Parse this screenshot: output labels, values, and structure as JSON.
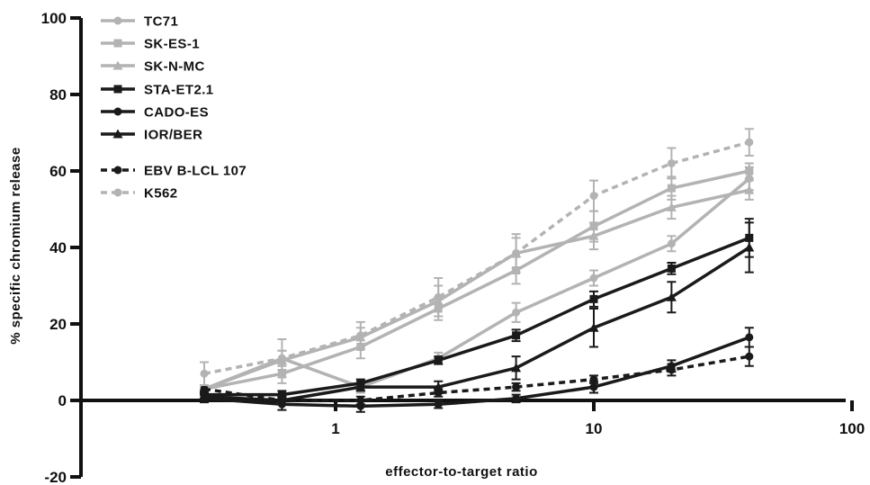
{
  "chart_data": {
    "type": "line",
    "xlabel": "effector-to-target ratio",
    "ylabel": "% specific chromium release",
    "xscale": "log",
    "xlim": [
      0.1,
      100
    ],
    "ylim": [
      -20,
      100
    ],
    "x_ticks": [
      1,
      10,
      100
    ],
    "x_tick_labels": [
      "1",
      "10",
      "100"
    ],
    "y_ticks": [
      -20,
      0,
      20,
      40,
      60,
      80,
      100
    ],
    "y_tick_labels": [
      "-20",
      "0",
      "20",
      "40",
      "60",
      "80",
      "100"
    ],
    "x": [
      0.31,
      0.62,
      1.25,
      2.5,
      5,
      10,
      20,
      40
    ],
    "legend_position": "top-left",
    "grid": false,
    "series": [
      {
        "name": "TC71",
        "color": "#b3b3b3",
        "marker": "circle",
        "dash": false,
        "values": [
          3,
          11,
          3.5,
          11,
          23,
          32,
          41,
          58
        ],
        "errors": [
          1,
          2,
          1.5,
          1.5,
          2.5,
          2,
          2,
          3
        ]
      },
      {
        "name": "SK-ES-1",
        "color": "#b3b3b3",
        "marker": "square",
        "dash": false,
        "values": [
          3,
          7,
          14,
          24,
          34,
          45.5,
          55.5,
          60
        ],
        "errors": [
          1,
          2.5,
          3,
          3,
          3.5,
          4,
          3,
          2
        ]
      },
      {
        "name": "SK-N-MC",
        "color": "#b3b3b3",
        "marker": "triangle",
        "dash": false,
        "values": [
          3,
          10.5,
          16.5,
          26,
          38.5,
          43,
          50.5,
          55
        ],
        "errors": [
          1,
          2.5,
          2.5,
          4,
          4,
          3.5,
          3,
          2.5
        ]
      },
      {
        "name": "STA-ET2.1",
        "color": "#1a1a1a",
        "marker": "square",
        "dash": false,
        "values": [
          1.5,
          1.5,
          4.5,
          10.5,
          17,
          26.5,
          34.5,
          42.5
        ],
        "errors": [
          1,
          1,
          1,
          1,
          1.5,
          2,
          1.5,
          5
        ]
      },
      {
        "name": "CADO-ES",
        "color": "#1a1a1a",
        "marker": "circle",
        "dash": false,
        "values": [
          0.5,
          -1,
          -1.5,
          -1,
          0.5,
          3.5,
          9,
          16.5
        ],
        "errors": [
          1,
          1.5,
          1.5,
          1,
          1,
          1.5,
          1.5,
          2.5
        ]
      },
      {
        "name": "IOR/BER",
        "color": "#1a1a1a",
        "marker": "triangle",
        "dash": false,
        "values": [
          1,
          0,
          3.5,
          3.5,
          8.5,
          19,
          27,
          40
        ],
        "errors": [
          1,
          1,
          1,
          1.5,
          3,
          5,
          4,
          6.5
        ]
      },
      {
        "name": "EBV B-LCL 107",
        "color": "#1a1a1a",
        "marker": "circle",
        "dash": true,
        "values": [
          3,
          0,
          0,
          2,
          3.5,
          5.5,
          8,
          11.5
        ],
        "errors": [
          1,
          1,
          1,
          1,
          1,
          1,
          1.5,
          2.5
        ]
      },
      {
        "name": "K562",
        "color": "#b3b3b3",
        "marker": "circle",
        "dash": true,
        "values": [
          7,
          11,
          17,
          27,
          38.5,
          53.5,
          62,
          67.5
        ],
        "errors": [
          3,
          5,
          3.5,
          5,
          5,
          4,
          4,
          3.5
        ]
      }
    ]
  }
}
